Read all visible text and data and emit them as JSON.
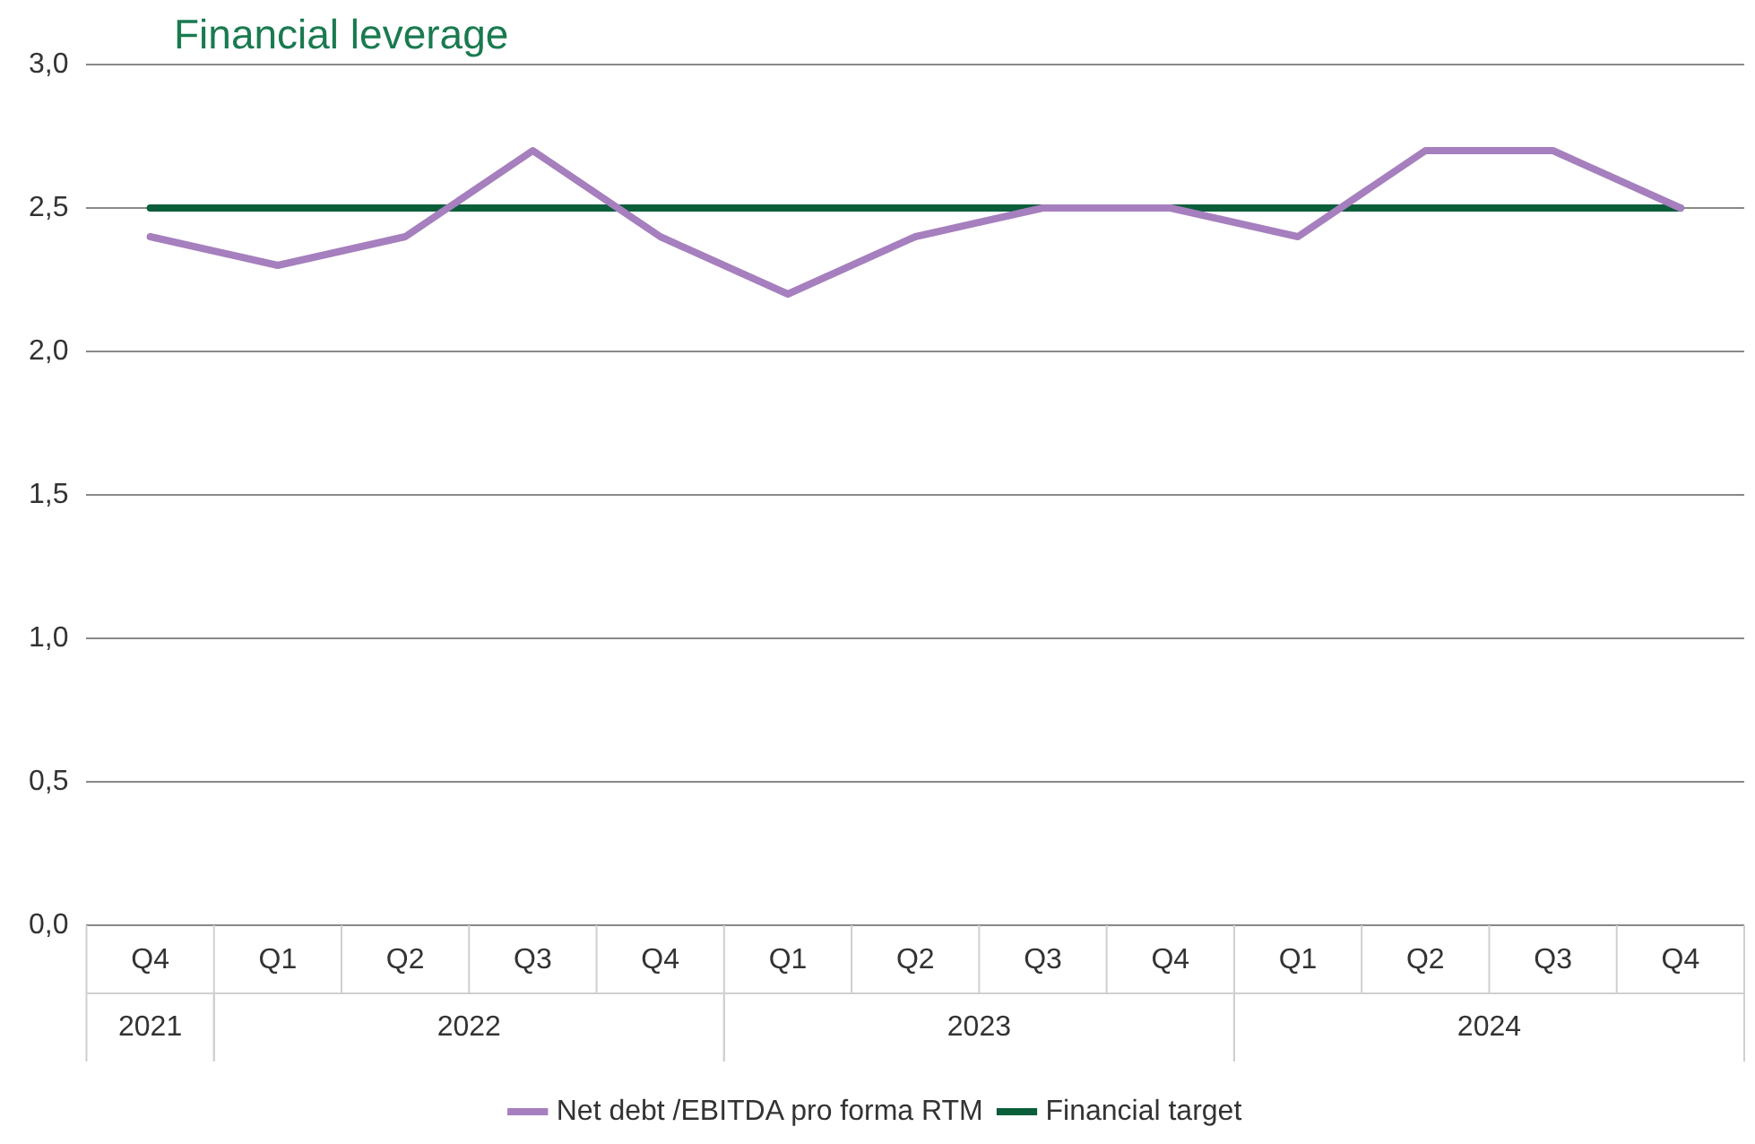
{
  "chart_data": {
    "type": "line",
    "title": "Financial leverage",
    "categories": [
      "Q4",
      "Q1",
      "Q2",
      "Q3",
      "Q4",
      "Q1",
      "Q2",
      "Q3",
      "Q4",
      "Q1",
      "Q2",
      "Q3",
      "Q4"
    ],
    "series": [
      {
        "name": "Net debt /EBITDA pro forma RTM",
        "color": "#a67fbe",
        "values": [
          2.4,
          2.3,
          2.4,
          2.7,
          2.4,
          2.2,
          2.4,
          2.5,
          2.5,
          2.4,
          2.7,
          2.7,
          2.5
        ]
      },
      {
        "name": "Financial target",
        "color": "#0a5e3a",
        "values": [
          2.5,
          2.5,
          2.5,
          2.5,
          2.5,
          2.5,
          2.5,
          2.5,
          2.5,
          2.5,
          2.5,
          2.5,
          2.5
        ]
      }
    ],
    "annotations": [
      "2021",
      "2022",
      "2023",
      "2024"
    ],
    "ylim": [
      0,
      3
    ],
    "yticks": [
      {
        "value": 0,
        "label": "0,0"
      },
      {
        "value": 0.5,
        "label": "0,5"
      },
      {
        "value": 1,
        "label": "1,0"
      },
      {
        "value": 1.5,
        "label": "1,5"
      },
      {
        "value": 2,
        "label": "2,0"
      },
      {
        "value": 2.5,
        "label": "2,5"
      },
      {
        "value": 3,
        "label": "3,0"
      }
    ],
    "grid": "y",
    "legend": "bottom",
    "marker": "none",
    "line_style": "solid"
  }
}
